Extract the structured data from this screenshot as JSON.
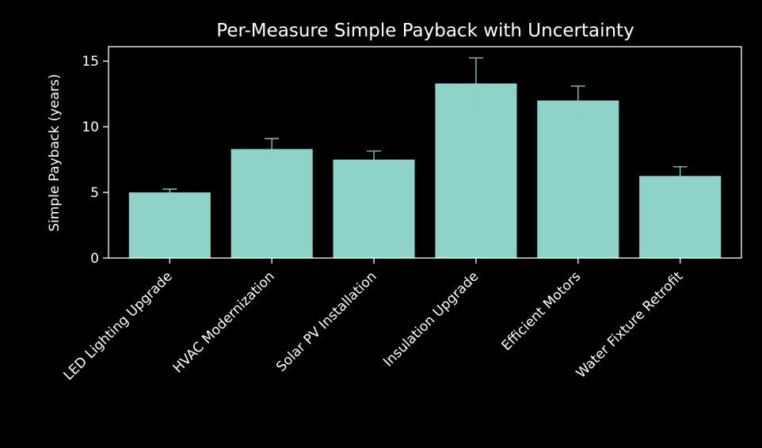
{
  "chart_data": {
    "type": "bar",
    "title": "Per-Measure Simple Payback with Uncertainty",
    "xlabel": "",
    "ylabel": "Simple Payback (years)",
    "categories": [
      "LED Lighting Upgrade",
      "HVAC Modernization",
      "Solar PV Installation",
      "Insulation Upgrade",
      "Efficient Motors",
      "Water Fixture Retrofit"
    ],
    "values": [
      5.0,
      8.3,
      7.5,
      13.3,
      12.0,
      6.25
    ],
    "errors": [
      0.25,
      0.8,
      0.65,
      1.95,
      1.1,
      0.7
    ],
    "ylim": [
      0,
      16.1
    ],
    "yticks": [
      0,
      5,
      10,
      15
    ],
    "ytick_labels": [
      "0",
      "5",
      "10",
      "15"
    ],
    "grid": false,
    "colors": {
      "background": "#000000",
      "bar": "#8dd3c7",
      "error_bar": "#8dd3c7",
      "axes": "#ffffff",
      "text": "#ffffff"
    }
  }
}
